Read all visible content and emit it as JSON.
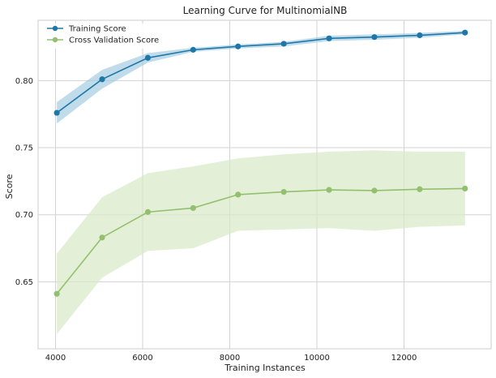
{
  "chart_data": {
    "type": "line",
    "title": "Learning Curve for MultinomialNB",
    "xlabel": "Training Instances",
    "ylabel": "Score",
    "xlim": [
      3600,
      14000
    ],
    "ylim": [
      0.6,
      0.845
    ],
    "x_ticks": [
      4000,
      6000,
      8000,
      10000,
      12000
    ],
    "x_tick_labels": [
      "4000",
      "6000",
      "8000",
      "10000",
      "12000"
    ],
    "y_ticks": [
      0.65,
      0.7,
      0.75,
      0.8
    ],
    "y_tick_labels": [
      "0.65",
      "0.70",
      "0.75",
      "0.80"
    ],
    "grid": true,
    "legend_position": "top-left",
    "x": [
      4030,
      5070,
      6120,
      7160,
      8190,
      9240,
      10280,
      11320,
      12360,
      13400
    ],
    "series": [
      {
        "name": "Training Score",
        "color": "#1f77a8",
        "band_color": "#9ecae1",
        "values": [
          0.776,
          0.801,
          0.817,
          0.823,
          0.8255,
          0.8275,
          0.8315,
          0.8325,
          0.8338,
          0.8358
        ],
        "lower": [
          0.768,
          0.794,
          0.8135,
          0.8215,
          0.824,
          0.8255,
          0.8295,
          0.8305,
          0.832,
          0.8345
        ],
        "upper": [
          0.784,
          0.808,
          0.8205,
          0.8245,
          0.827,
          0.829,
          0.8335,
          0.8345,
          0.8356,
          0.8371
        ]
      },
      {
        "name": "Cross Validation Score",
        "color": "#93c06f",
        "band_color": "#d9e8c6",
        "values": [
          0.641,
          0.683,
          0.702,
          0.705,
          0.715,
          0.717,
          0.7185,
          0.718,
          0.719,
          0.7195
        ],
        "lower": [
          0.611,
          0.653,
          0.673,
          0.675,
          0.688,
          0.689,
          0.69,
          0.688,
          0.691,
          0.692
        ],
        "upper": [
          0.671,
          0.713,
          0.731,
          0.736,
          0.742,
          0.745,
          0.747,
          0.748,
          0.747,
          0.747
        ]
      }
    ]
  }
}
